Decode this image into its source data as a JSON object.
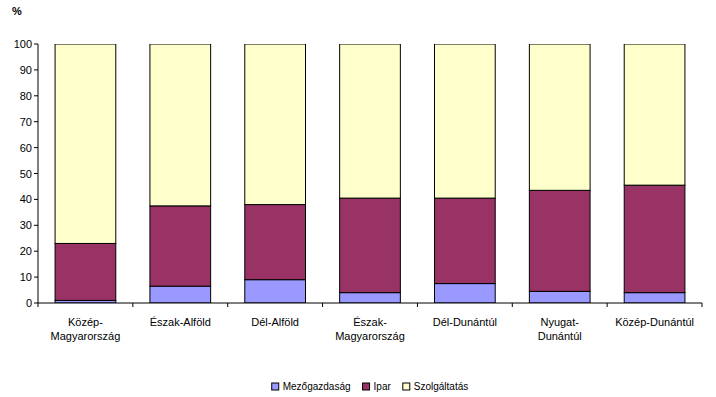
{
  "chart_data": {
    "type": "bar",
    "stacked": true,
    "legend": "bottom",
    "y_label": "%",
    "categories": [
      "Közép-Magyarország",
      "Észak-Alföld",
      "Dél-Alföld",
      "Észak-Magyarország",
      "Dél-Dunántúl",
      "Nyugat-Dunántúl",
      "Közép-Dunántúl"
    ],
    "series": [
      {
        "name": "Mezőgazdaság",
        "color": "#9999ff",
        "values": [
          1,
          6.5,
          9,
          4,
          7.5,
          4.5,
          4
        ]
      },
      {
        "name": "Ipar",
        "color": "#993366",
        "values": [
          22,
          31,
          29,
          36.5,
          33,
          39,
          41.5
        ]
      },
      {
        "name": "Szolgáltatás",
        "color": "#ffffcc",
        "values": [
          77,
          62.5,
          62,
          59.5,
          59.5,
          56.5,
          54.5
        ]
      }
    ],
    "ylim": [
      0,
      100
    ],
    "yticks": [
      0,
      10,
      20,
      30,
      40,
      50,
      60,
      70,
      80,
      90,
      100
    ],
    "grid": false
  }
}
